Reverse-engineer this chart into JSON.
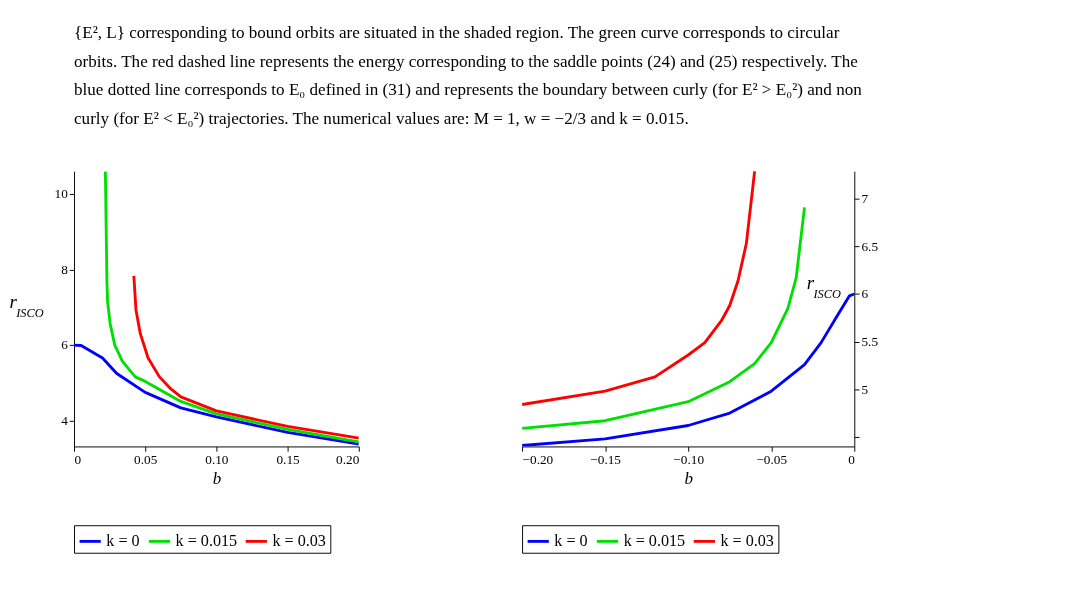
{
  "chart_data": [
    {
      "type": "line",
      "xlabel": "b",
      "ylabel": "r$_{ISCO}$",
      "legend": "bottom",
      "marker": "none",
      "line_style": "solid",
      "annotations": [
        "{E², L} corresponding to bound orbits are situated in the shaded region. The green curve corresponds to circular orbits. The red dashed line represents the energy corresponding to the saddle points (24) and (25) respectively. The blue dotted line corresponds to E₀ defined in (31) and represents the boundary between curly (for E² > E₀²) and non curly (for E² < E₀²) trajectories. The numerical values are: M = 1, w = −2/3 and k = 0.015."
      ],
      "xlim": [
        0,
        0.2
      ],
      "ylim": [
        3.32,
        10.6
      ],
      "xticks": [
        0,
        0.05,
        {
          "value": 0.1,
          "label": "0.10"
        },
        0.15,
        {
          "value": 0.2,
          "label": "0.20"
        }
      ],
      "yticks": [
        4,
        6,
        8,
        10
      ],
      "series": [
        {
          "name": "k = 0",
          "color": "#0000ff",
          "x": [
            0,
            0.005,
            0.02,
            0.03,
            0.05,
            0.075,
            0.1,
            0.15,
            0.2
          ],
          "values": [
            6.0,
            5.99,
            5.66,
            5.25,
            4.75,
            4.34,
            4.1,
            3.69,
            3.38
          ]
        },
        {
          "name": "k = 0.015",
          "color": "#00e000",
          "x": [
            0.022,
            0.0231,
            0.0236,
            0.0254,
            0.0286,
            0.034,
            0.043,
            0.05,
            0.075,
            0.1,
            0.15,
            0.2
          ],
          "values": [
            10.59,
            7.66,
            7.13,
            6.56,
            6.0,
            5.57,
            5.16,
            5.04,
            4.51,
            4.18,
            3.77,
            3.44
          ]
        },
        {
          "name": "k = 0.03",
          "color": "#ff0000",
          "x": [
            0.042,
            0.0435,
            0.0465,
            0.052,
            0.06,
            0.068,
            0.075,
            0.1,
            0.15,
            0.2
          ],
          "values": [
            7.83,
            6.93,
            6.31,
            5.66,
            5.16,
            4.84,
            4.63,
            4.26,
            3.85,
            3.54
          ]
        }
      ]
    },
    {
      "type": "line",
      "xlabel": "b",
      "ylabel": "r$_{ISCO}$",
      "legend": "bottom",
      "marker": "none",
      "line_style": "solid",
      "xlim": [
        -0.2,
        0
      ],
      "ylim": [
        4.4,
        7.29
      ],
      "xticks": [
        {
          "value": -0.2,
          "label": "−0.20"
        },
        {
          "value": -0.15,
          "label": "−0.15"
        },
        {
          "value": -0.1,
          "label": "−0.10"
        },
        {
          "value": -0.05,
          "label": "−0.05"
        },
        0
      ],
      "yticks": [
        {
          "value": 4.5,
          "label": null
        },
        5,
        5.5,
        6,
        6.5,
        7
      ],
      "series": [
        {
          "name": "k = 0",
          "color": "#0000ff",
          "x": [
            -0.2,
            -0.15,
            -0.1,
            -0.075,
            -0.05,
            -0.03,
            -0.02,
            -0.01,
            -0.003,
            0
          ],
          "values": [
            4.41,
            4.48,
            4.62,
            4.75,
            4.98,
            5.26,
            5.49,
            5.78,
            5.98,
            6.0
          ]
        },
        {
          "name": "k = 0.015",
          "color": "#00e000",
          "x": [
            -0.2,
            -0.15,
            -0.1,
            -0.075,
            -0.06,
            -0.05,
            -0.04,
            -0.035,
            -0.03
          ],
          "values": [
            4.59,
            4.67,
            4.87,
            5.08,
            5.27,
            5.49,
            5.85,
            6.17,
            6.91
          ]
        },
        {
          "name": "k = 0.03",
          "color": "#ff0000",
          "x": [
            -0.2,
            -0.15,
            -0.12,
            -0.1,
            -0.09,
            -0.08,
            -0.075,
            -0.07,
            -0.065,
            -0.06
          ],
          "values": [
            4.84,
            4.98,
            5.13,
            5.36,
            5.49,
            5.72,
            5.88,
            6.14,
            6.53,
            7.29
          ]
        }
      ]
    }
  ]
}
